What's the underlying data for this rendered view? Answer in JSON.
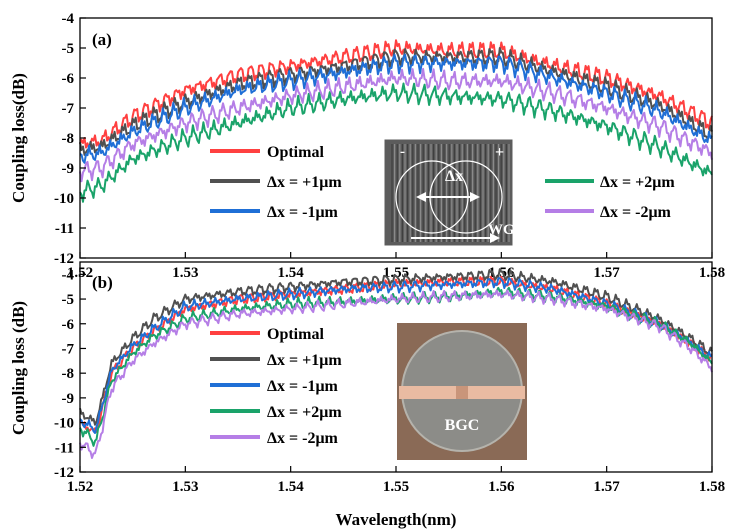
{
  "figure": {
    "xlabel": "Wavelength(nm)"
  },
  "chart_data": [
    {
      "type": "line",
      "panel_label": "(a)",
      "ylabel": "Coupling loss(dB)",
      "xlim": [
        1.52,
        1.58
      ],
      "ylim": [
        -12,
        -4
      ],
      "x_ticks": [
        "1.52",
        "1.53",
        "1.54",
        "1.55",
        "1.56",
        "1.57",
        "1.58"
      ],
      "y_ticks": [
        "-4",
        "-5",
        "-6",
        "-7",
        "-8",
        "-9",
        "-10",
        "-11",
        "-12"
      ],
      "x": [
        1.52,
        1.522,
        1.525,
        1.53,
        1.535,
        1.54,
        1.545,
        1.55,
        1.555,
        1.56,
        1.565,
        1.57,
        1.575,
        1.58
      ],
      "series": [
        {
          "name": "Optimal",
          "color": "#ff4040",
          "values": [
            -8.2,
            -8.1,
            -7.3,
            -6.4,
            -5.9,
            -5.6,
            -5.3,
            -5.0,
            -5.1,
            -5.1,
            -5.6,
            -6.0,
            -6.6,
            -7.5
          ]
        },
        {
          "name": "Δx = +1μm",
          "color": "#505050",
          "values": [
            -8.4,
            -8.3,
            -7.6,
            -6.8,
            -6.2,
            -5.9,
            -5.6,
            -5.3,
            -5.3,
            -5.3,
            -5.8,
            -6.3,
            -6.9,
            -7.9
          ]
        },
        {
          "name": "Δx = -1μm",
          "color": "#1f6fd6",
          "values": [
            -8.6,
            -8.5,
            -7.8,
            -7.0,
            -6.4,
            -6.1,
            -5.8,
            -5.5,
            -5.5,
            -5.5,
            -6.0,
            -6.5,
            -7.1,
            -8.1
          ]
        },
        {
          "name": "Δx = +2μm",
          "color": "#1aa36a",
          "values": [
            -9.8,
            -9.6,
            -8.7,
            -8.0,
            -7.5,
            -7.0,
            -6.7,
            -6.5,
            -6.6,
            -6.7,
            -7.1,
            -7.6,
            -8.3,
            -9.2
          ]
        },
        {
          "name": "Δx = -2μm",
          "color": "#b57ee6",
          "values": [
            -9.1,
            -9.0,
            -8.2,
            -7.5,
            -7.0,
            -6.6,
            -6.3,
            -6.0,
            -6.1,
            -6.1,
            -6.5,
            -7.0,
            -7.6,
            -8.5
          ]
        }
      ],
      "inset": {
        "labels": [
          "-",
          "+",
          "Δx",
          "WG"
        ]
      }
    },
    {
      "type": "line",
      "panel_label": "(b)",
      "ylabel": "Coupling loss  (dB)",
      "xlim": [
        1.52,
        1.58
      ],
      "ylim": [
        -12,
        -3.5
      ],
      "x_ticks": [
        "1.52",
        "1.53",
        "1.54",
        "1.55",
        "1.56",
        "1.57",
        "1.58"
      ],
      "y_ticks": [
        "-4",
        "-5",
        "-6",
        "-7",
        "-8",
        "-9",
        "-10",
        "-11",
        "-12"
      ],
      "x": [
        1.52,
        1.5215,
        1.523,
        1.525,
        1.527,
        1.53,
        1.535,
        1.54,
        1.545,
        1.55,
        1.555,
        1.56,
        1.565,
        1.57,
        1.575,
        1.578,
        1.58
      ],
      "series": [
        {
          "name": "Optimal",
          "color": "#ff4040",
          "values": [
            -10.0,
            -10.4,
            -8.0,
            -7.0,
            -6.3,
            -5.4,
            -5.0,
            -4.8,
            -4.6,
            -4.4,
            -4.3,
            -4.3,
            -4.6,
            -5.2,
            -6.0,
            -6.8,
            -7.4
          ]
        },
        {
          "name": "Δx = +1μm",
          "color": "#505050",
          "values": [
            -9.6,
            -10.0,
            -7.6,
            -6.6,
            -5.8,
            -5.0,
            -4.7,
            -4.5,
            -4.3,
            -4.2,
            -4.1,
            -4.0,
            -4.3,
            -4.9,
            -5.8,
            -6.6,
            -7.2
          ]
        },
        {
          "name": "Δx =  -1μm",
          "color": "#1f6fd6",
          "values": [
            -9.9,
            -10.3,
            -7.9,
            -6.9,
            -6.2,
            -5.3,
            -5.0,
            -4.8,
            -4.6,
            -4.5,
            -4.4,
            -4.3,
            -4.6,
            -5.2,
            -6.0,
            -6.8,
            -7.4
          ]
        },
        {
          "name": "Δx = +2μm",
          "color": "#1aa36a",
          "values": [
            -10.2,
            -10.8,
            -8.3,
            -7.2,
            -6.5,
            -5.8,
            -5.4,
            -5.2,
            -5.1,
            -5.0,
            -4.9,
            -4.7,
            -4.9,
            -5.3,
            -6.0,
            -6.8,
            -7.6
          ]
        },
        {
          "name": "Δx =  -2μm",
          "color": "#b57ee6",
          "values": [
            -10.8,
            -11.3,
            -8.6,
            -7.5,
            -6.8,
            -6.0,
            -5.6,
            -5.4,
            -5.2,
            -5.0,
            -4.9,
            -4.8,
            -5.0,
            -5.4,
            -6.1,
            -7.0,
            -7.8
          ]
        }
      ],
      "inset": {
        "labels": [
          "BGC"
        ]
      }
    }
  ]
}
